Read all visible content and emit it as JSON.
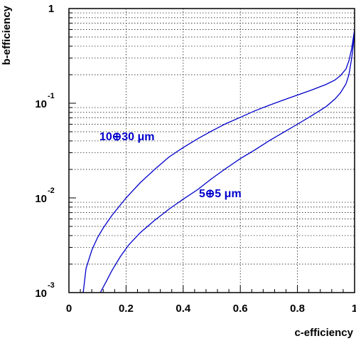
{
  "chart_data": {
    "type": "line",
    "title": "",
    "xlabel": "c-efficiency",
    "ylabel": "b-efficiency",
    "xlim": [
      0,
      1
    ],
    "ylim": [
      0.001,
      1
    ],
    "yscale": "log",
    "grid": true,
    "x_ticks": [
      "0",
      "0.2",
      "0.4",
      "0.6",
      "0.8",
      "1"
    ],
    "y_ticks": [
      {
        "base": "10",
        "exp": "-3"
      },
      {
        "base": "10",
        "exp": "-2"
      },
      {
        "base": "10",
        "exp": "-1"
      },
      {
        "base": "1",
        "exp": ""
      }
    ],
    "series": [
      {
        "name": "10⊕30 μm",
        "color": "#0000cc",
        "x": [
          0.05,
          0.06,
          0.08,
          0.1,
          0.12,
          0.15,
          0.2,
          0.25,
          0.3,
          0.35,
          0.4,
          0.45,
          0.5,
          0.55,
          0.6,
          0.65,
          0.7,
          0.75,
          0.8,
          0.85,
          0.9,
          0.93,
          0.95,
          0.97,
          0.98,
          0.99,
          1.0
        ],
        "y": [
          0.001,
          0.0018,
          0.0028,
          0.0038,
          0.0048,
          0.0065,
          0.01,
          0.0145,
          0.02,
          0.027,
          0.034,
          0.042,
          0.051,
          0.061,
          0.071,
          0.083,
          0.095,
          0.108,
          0.122,
          0.138,
          0.158,
          0.175,
          0.195,
          0.23,
          0.28,
          0.38,
          0.6
        ]
      },
      {
        "name": "5⊕5 μm",
        "color": "#0000cc",
        "x": [
          0.11,
          0.13,
          0.15,
          0.18,
          0.21,
          0.25,
          0.3,
          0.35,
          0.4,
          0.45,
          0.5,
          0.55,
          0.6,
          0.65,
          0.7,
          0.75,
          0.8,
          0.85,
          0.9,
          0.93,
          0.95,
          0.97,
          0.98,
          0.99,
          1.0
        ],
        "y": [
          0.001,
          0.0013,
          0.0017,
          0.0024,
          0.0032,
          0.0043,
          0.0058,
          0.0076,
          0.0097,
          0.0122,
          0.016,
          0.0205,
          0.026,
          0.032,
          0.04,
          0.049,
          0.06,
          0.074,
          0.092,
          0.11,
          0.128,
          0.16,
          0.2,
          0.3,
          0.55
        ]
      }
    ]
  }
}
